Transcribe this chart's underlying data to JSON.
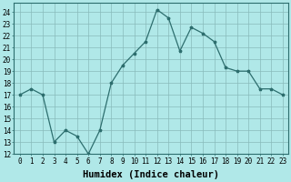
{
  "x": [
    0,
    1,
    2,
    3,
    4,
    5,
    6,
    7,
    8,
    9,
    10,
    11,
    12,
    13,
    14,
    15,
    16,
    17,
    18,
    19,
    20,
    21,
    22,
    23
  ],
  "y": [
    17.0,
    17.5,
    17.0,
    13.0,
    14.0,
    13.5,
    12.0,
    14.0,
    18.0,
    19.5,
    20.5,
    21.5,
    24.2,
    23.5,
    20.7,
    22.7,
    22.2,
    21.5,
    19.3,
    19.0,
    19.0,
    17.5,
    17.5,
    17.0
  ],
  "line_color": "#2d6e6e",
  "marker": "*",
  "bg_color": "#b0e8e8",
  "grid_color": "#88bbbb",
  "xlabel": "Humidex (Indice chaleur)",
  "xlim": [
    -0.5,
    23.5
  ],
  "ylim": [
    12,
    24.8
  ],
  "yticks": [
    12,
    13,
    14,
    15,
    16,
    17,
    18,
    19,
    20,
    21,
    22,
    23,
    24
  ],
  "xticks": [
    0,
    1,
    2,
    3,
    4,
    5,
    6,
    7,
    8,
    9,
    10,
    11,
    12,
    13,
    14,
    15,
    16,
    17,
    18,
    19,
    20,
    21,
    22,
    23
  ],
  "tick_fontsize": 5.5,
  "xlabel_fontsize": 7.5,
  "xlabel_fontweight": "bold"
}
